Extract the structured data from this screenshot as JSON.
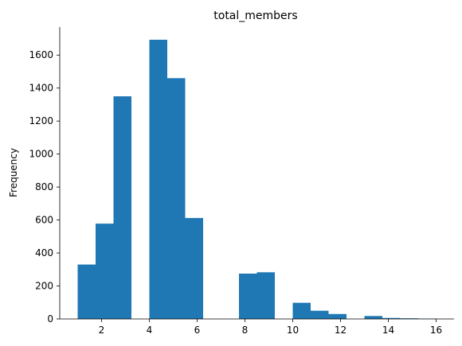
{
  "chart_data": {
    "type": "bar",
    "title": "total_members",
    "xlabel": "",
    "ylabel": "Frequency",
    "xlim": [
      0.25,
      16.75
    ],
    "ylim": [
      0,
      1770
    ],
    "xticks": [
      2,
      4,
      6,
      8,
      10,
      12,
      14,
      16
    ],
    "yticks": [
      0,
      200,
      400,
      600,
      800,
      1000,
      1200,
      1400,
      1600
    ],
    "grid": false,
    "legend": "none",
    "bar_color": "#1f77b4",
    "bins": [
      {
        "x0": 1.0,
        "x1": 1.75,
        "count": 330
      },
      {
        "x0": 1.75,
        "x1": 2.5,
        "count": 578
      },
      {
        "x0": 2.5,
        "x1": 3.25,
        "count": 1350
      },
      {
        "x0": 3.25,
        "x1": 4.0,
        "count": 0
      },
      {
        "x0": 4.0,
        "x1": 4.75,
        "count": 1693
      },
      {
        "x0": 4.75,
        "x1": 5.5,
        "count": 1460
      },
      {
        "x0": 5.5,
        "x1": 6.25,
        "count": 612
      },
      {
        "x0": 6.25,
        "x1": 7.0,
        "count": 0
      },
      {
        "x0": 7.0,
        "x1": 7.75,
        "count": 0
      },
      {
        "x0": 7.75,
        "x1": 8.5,
        "count": 275
      },
      {
        "x0": 8.5,
        "x1": 9.25,
        "count": 283
      },
      {
        "x0": 9.25,
        "x1": 10.0,
        "count": 0
      },
      {
        "x0": 10.0,
        "x1": 10.75,
        "count": 98
      },
      {
        "x0": 10.75,
        "x1": 11.5,
        "count": 50
      },
      {
        "x0": 11.5,
        "x1": 12.25,
        "count": 30
      },
      {
        "x0": 12.25,
        "x1": 13.0,
        "count": 0
      },
      {
        "x0": 13.0,
        "x1": 13.75,
        "count": 18
      },
      {
        "x0": 13.75,
        "x1": 14.5,
        "count": 6
      },
      {
        "x0": 14.5,
        "x1": 15.25,
        "count": 4
      },
      {
        "x0": 15.25,
        "x1": 16.0,
        "count": 2
      }
    ]
  }
}
